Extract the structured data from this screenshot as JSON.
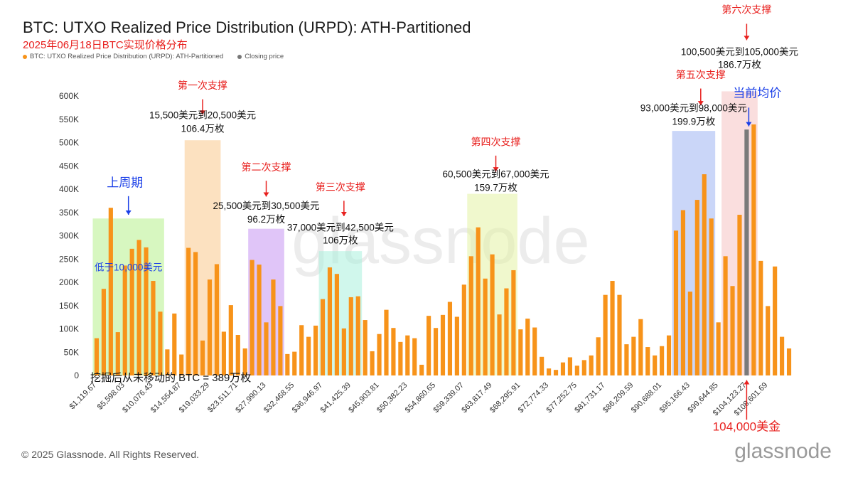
{
  "title": "BTC: UTXO Realized Price Distribution (URPD): ATH-Partitioned",
  "subtitle": "2025年06月18日BTC实现价格分布",
  "legend": [
    {
      "label": "BTC: UTXO Realized Price Distribution (URPD): ATH-Partitioned",
      "color": "#f7931a"
    },
    {
      "label": "Closing price",
      "color": "#777777"
    }
  ],
  "footer": {
    "copyright": "© 2025 Glassnode. All Rights Reserved.",
    "logo": "glassnode",
    "watermark": "glassnode"
  },
  "chart_data": {
    "type": "bar",
    "title": "BTC: UTXO Realized Price Distribution (URPD): ATH-Partitioned",
    "ylim": [
      0,
      600000
    ],
    "y_ticks": [
      {
        "value": 0,
        "label": "0"
      },
      {
        "value": 50000,
        "label": "50K"
      },
      {
        "value": 100000,
        "label": "100K"
      },
      {
        "value": 150000,
        "label": "150K"
      },
      {
        "value": 200000,
        "label": "200K"
      },
      {
        "value": 250000,
        "label": "250K"
      },
      {
        "value": 300000,
        "label": "300K"
      },
      {
        "value": 350000,
        "label": "350K"
      },
      {
        "value": 400000,
        "label": "400K"
      },
      {
        "value": 450000,
        "label": "450K"
      },
      {
        "value": 500000,
        "label": "500K"
      },
      {
        "value": 550000,
        "label": "550K"
      },
      {
        "value": 600000,
        "label": "600K"
      }
    ],
    "x_tick_labels": [
      {
        "index": 0,
        "label": "$1,119.67"
      },
      {
        "index": 4,
        "label": "$5,598.03"
      },
      {
        "index": 8,
        "label": "$10,076.43"
      },
      {
        "index": 12,
        "label": "$14,554.87"
      },
      {
        "index": 16,
        "label": "$19,033.29"
      },
      {
        "index": 20,
        "label": "$23,511.71"
      },
      {
        "index": 24,
        "label": "$27,990.13"
      },
      {
        "index": 28,
        "label": "$32,468.55"
      },
      {
        "index": 32,
        "label": "$36,946.97"
      },
      {
        "index": 36,
        "label": "$41,425.39"
      },
      {
        "index": 40,
        "label": "$45,903.81"
      },
      {
        "index": 44,
        "label": "$50,382.23"
      },
      {
        "index": 48,
        "label": "$54,860.65"
      },
      {
        "index": 52,
        "label": "$59,339.07"
      },
      {
        "index": 56,
        "label": "$63,817.49"
      },
      {
        "index": 60,
        "label": "$68,295.91"
      },
      {
        "index": 64,
        "label": "$72,774.33"
      },
      {
        "index": 68,
        "label": "$77,252.75"
      },
      {
        "index": 72,
        "label": "$81,731.17"
      },
      {
        "index": 76,
        "label": "$86,209.59"
      },
      {
        "index": 80,
        "label": "$90,688.01"
      },
      {
        "index": 84,
        "label": "$95,166.43"
      },
      {
        "index": 88,
        "label": "$99,644.85"
      },
      {
        "index": 92,
        "label": "$104,123.27"
      },
      {
        "index": 95,
        "label": "$108,601.69"
      }
    ],
    "values": [
      80000,
      186000,
      360000,
      93000,
      236000,
      272000,
      291000,
      275000,
      203000,
      137000,
      56000,
      133000,
      45000,
      274000,
      265000,
      75000,
      206000,
      239000,
      94000,
      151000,
      87000,
      58000,
      248000,
      238000,
      114000,
      206000,
      149000,
      46000,
      51000,
      108000,
      83000,
      107000,
      164000,
      232000,
      218000,
      101000,
      168000,
      170000,
      119000,
      52000,
      89000,
      141000,
      102000,
      72000,
      86000,
      80000,
      23000,
      128000,
      102000,
      130000,
      158000,
      126000,
      195000,
      256000,
      318000,
      208000,
      260000,
      131000,
      187000,
      226000,
      99000,
      122000,
      103000,
      40000,
      15000,
      12000,
      28000,
      39000,
      21000,
      33000,
      43000,
      82000,
      173000,
      203000,
      173000,
      67000,
      83000,
      121000,
      61000,
      43000,
      63000,
      86000,
      311000,
      355000,
      180000,
      377000,
      432000,
      337000,
      114000,
      256000,
      192000,
      345000,
      528000,
      539000,
      246000,
      149000,
      234000,
      83000,
      58000
    ],
    "closing_price_index": 92,
    "regions": [
      {
        "from": 0,
        "to": 9,
        "color": "#b6f08c"
      },
      {
        "from": 13,
        "to": 17,
        "color": "#f9c98c"
      },
      {
        "from": 22,
        "to": 26,
        "color": "#c796f2"
      },
      {
        "from": 32,
        "to": 37,
        "color": "#a9f0dc"
      },
      {
        "from": 53,
        "to": 59,
        "color": "#e4f2a4"
      },
      {
        "from": 82,
        "to": 87,
        "color": "#9fb4f2"
      },
      {
        "from": 89,
        "to": 93,
        "color": "#f6c2c2"
      }
    ],
    "annotations": [
      {
        "text": "第一次支撑",
        "color": "#e8201e",
        "index": 15,
        "value": 615000
      },
      {
        "text": "15,500美元到20,500美元",
        "color": "#111111",
        "index": 15,
        "value": 552000
      },
      {
        "text": "106.4万枚",
        "color": "#111111",
        "index": 15,
        "value": 523000
      },
      {
        "text": "第二次支撑",
        "color": "#e8201e",
        "index": 24,
        "value": 440000
      },
      {
        "text": "25,500美元到30,500美元",
        "color": "#111111",
        "index": 24,
        "value": 357000
      },
      {
        "text": "96.2万枚",
        "color": "#111111",
        "index": 24,
        "value": 328000
      },
      {
        "text": "第三次支撑",
        "color": "#e8201e",
        "index": 34.5,
        "value": 397000
      },
      {
        "text": "37,000美元到42,500美元",
        "color": "#111111",
        "index": 34.5,
        "value": 311000
      },
      {
        "text": "106万枚",
        "color": "#111111",
        "index": 34.5,
        "value": 283000
      },
      {
        "text": "第四次支撑",
        "color": "#e8201e",
        "index": 56.5,
        "value": 494000
      },
      {
        "text": "60,500美元到67,000美元",
        "color": "#111111",
        "index": 56.5,
        "value": 425000
      },
      {
        "text": "159.7万枚",
        "color": "#111111",
        "index": 56.5,
        "value": 396000
      },
      {
        "text": "第五次支撑",
        "color": "#e8201e",
        "index": 85.5,
        "value": 638000
      },
      {
        "text": "93,000美元到98,000美元",
        "color": "#111111",
        "index": 84.5,
        "value": 567000
      },
      {
        "text": "199.9万枚",
        "color": "#111111",
        "index": 84.5,
        "value": 538000
      },
      {
        "text": "第六次支撑",
        "color": "#e8201e",
        "index": 92,
        "value": 778000
      },
      {
        "text": "100,500美元到105,000美元",
        "color": "#111111",
        "index": 91,
        "value": 688000
      },
      {
        "text": "186.7万枚",
        "color": "#111111",
        "index": 91,
        "value": 660000
      },
      {
        "text": "当前均价",
        "color": "#1a3fe8",
        "index": 93.5,
        "value": 598000
      },
      {
        "text": "上周期",
        "color": "#1a3fe8",
        "index": 4,
        "value": 405000
      },
      {
        "text": "低于10,000美元",
        "color": "#1a3fe8",
        "index": 4.5,
        "value": 225000
      },
      {
        "text": "挖掘后从未移动的 BTC = 389万枚",
        "color": "#111111",
        "index": 12.5,
        "value": -12000
      },
      {
        "text": "104,000美金",
        "color": "#e8201e",
        "index": 92,
        "value": -118000
      }
    ],
    "arrows": [
      {
        "index": 15,
        "from": 593000,
        "to": 560000,
        "color": "#e8201e"
      },
      {
        "index": 24,
        "from": 418000,
        "to": 384000,
        "color": "#e8201e"
      },
      {
        "index": 35,
        "from": 375000,
        "to": 342000,
        "color": "#e8201e"
      },
      {
        "index": 56.5,
        "from": 472000,
        "to": 438000,
        "color": "#e8201e"
      },
      {
        "index": 85.5,
        "from": 616000,
        "to": 580000,
        "color": "#e8201e"
      },
      {
        "index": 92,
        "from": 755000,
        "to": 720000,
        "color": "#e8201e"
      },
      {
        "index": 4.5,
        "from": 385000,
        "to": 345000,
        "color": "#1a3fe8"
      },
      {
        "index": 92.3,
        "from": 575000,
        "to": 535000,
        "color": "#1a3fe8"
      },
      {
        "index": 92,
        "from": -95000,
        "to": -10000,
        "color": "#e8201e"
      }
    ]
  }
}
